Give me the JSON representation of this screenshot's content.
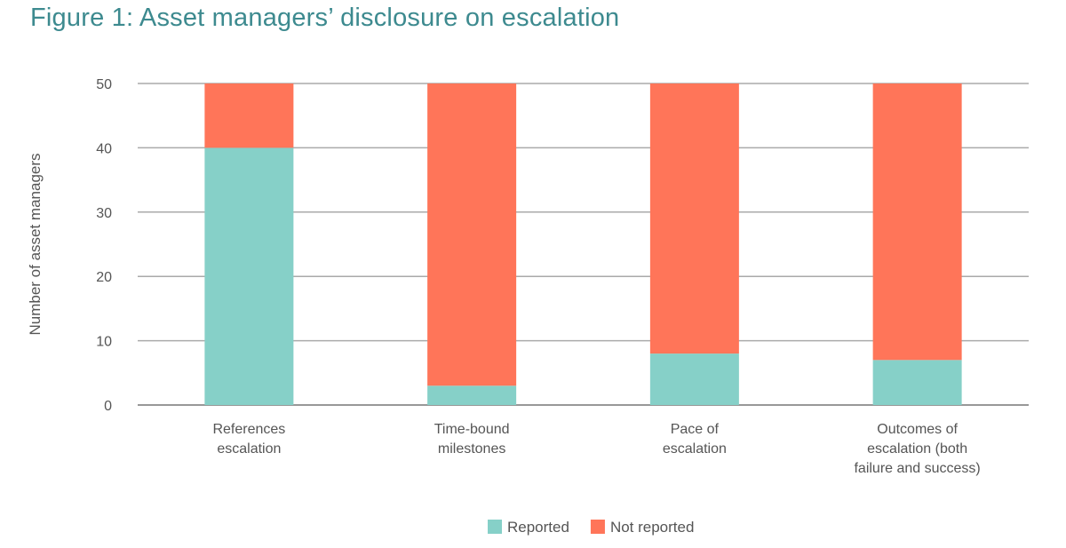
{
  "chart_data": {
    "type": "bar",
    "stacked": true,
    "title": "Figure 1: Asset managers’ disclosure on escalation",
    "xlabel": "",
    "ylabel": "Number of asset managers",
    "ylim": [
      0,
      50
    ],
    "yticks": [
      0,
      10,
      20,
      30,
      40,
      50
    ],
    "grid": true,
    "legend_position": "bottom",
    "categories": [
      [
        "References",
        "escalation"
      ],
      [
        "Time-bound",
        "milestones"
      ],
      [
        "Pace of",
        "escalation"
      ],
      [
        "Outcomes of",
        "escalation (both",
        "failure and success)"
      ]
    ],
    "series": [
      {
        "name": "Reported",
        "color": "#86d0c8",
        "values": [
          40,
          3,
          8,
          7
        ]
      },
      {
        "name": "Not reported",
        "color": "#ff7559",
        "values": [
          10,
          47,
          42,
          43
        ]
      }
    ]
  }
}
